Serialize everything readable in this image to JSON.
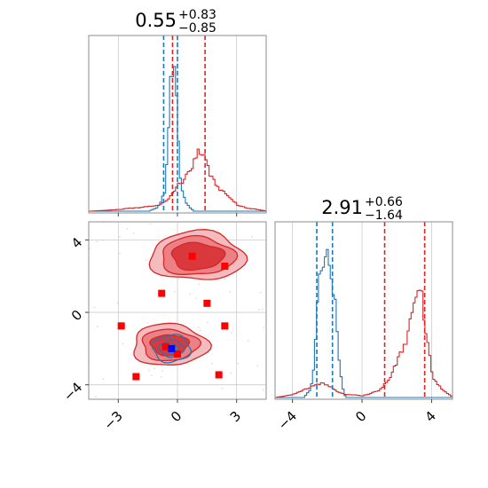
{
  "chart_data": [
    {
      "panel": "top-left",
      "type": "histogram",
      "title": {
        "value": "0.55",
        "plus": "+0.83",
        "minus": "−0.85"
      },
      "xlim": [
        -4.5,
        4.5
      ],
      "grid": true,
      "series": [
        {
          "color": "#1f77b4",
          "x": [
            -4.5,
            -1.5,
            -1.1,
            -0.9,
            -0.7,
            -0.6,
            -0.5,
            -0.4,
            -0.3,
            -0.2,
            -0.1,
            0.0,
            0.1,
            0.2,
            0.4,
            0.6,
            0.8,
            4.5
          ],
          "values": [
            0,
            0,
            0.02,
            0.05,
            0.12,
            0.3,
            0.55,
            0.85,
            0.9,
            1.0,
            0.75,
            0.4,
            0.2,
            0.12,
            0.05,
            0.02,
            0,
            0
          ]
        },
        {
          "color": "#d62728",
          "x": [
            -4.5,
            -3.0,
            -2.5,
            -2.0,
            -1.5,
            -1.0,
            -0.5,
            0.0,
            0.5,
            1.0,
            1.3,
            1.6,
            2.0,
            2.5,
            3.0,
            3.5,
            4.0,
            4.5
          ],
          "values": [
            0,
            0.01,
            0.02,
            0.02,
            0.03,
            0.04,
            0.07,
            0.16,
            0.25,
            0.35,
            0.33,
            0.24,
            0.16,
            0.09,
            0.04,
            0.02,
            0.01,
            0
          ]
        }
      ],
      "vlines": [
        {
          "x": -0.7,
          "color": "#1f77b4"
        },
        {
          "x": -0.25,
          "color": "#d62728"
        },
        {
          "x": 0.0,
          "color": "#1f77b4"
        },
        {
          "x": 1.4,
          "color": "#d62728"
        }
      ]
    },
    {
      "panel": "bottom-left",
      "type": "contour",
      "xlim": [
        -4.5,
        4.5
      ],
      "ylim": [
        -4.8,
        5.0
      ],
      "xticks": [
        "−3",
        "0",
        "3"
      ],
      "xtick_values": [
        -3,
        0,
        3
      ],
      "yticks": [
        "−4",
        "0",
        "4"
      ],
      "ytick_values": [
        -4,
        0,
        4
      ],
      "grid": true,
      "red_blobs": [
        {
          "cx": 1.0,
          "cy": 3.1,
          "rx": 2.4,
          "ry": 1.35,
          "levels": [
            1.0,
            0.78,
            0.55
          ]
        },
        {
          "cx": -0.4,
          "cy": -1.8,
          "rx": 1.9,
          "ry": 1.15,
          "levels": [
            1.0,
            0.75,
            0.5
          ]
        }
      ],
      "blue_contours": [
        {
          "cx": -0.3,
          "cy": -2.0,
          "rx": 0.95,
          "ry": 0.75
        },
        {
          "cx": -0.3,
          "cy": -2.0,
          "rx": 0.6,
          "ry": 0.45
        },
        {
          "cx": -0.3,
          "cy": -2.0,
          "rx": 0.3,
          "ry": 0.25
        }
      ],
      "red_markers": [
        [
          0.75,
          3.1
        ],
        [
          2.4,
          2.55
        ],
        [
          -0.8,
          1.05
        ],
        [
          1.5,
          0.5
        ],
        [
          -2.85,
          -0.75
        ],
        [
          2.4,
          -0.75
        ],
        [
          -0.6,
          -1.9
        ],
        [
          0.0,
          -2.3
        ],
        [
          -2.1,
          -3.55
        ],
        [
          2.1,
          -3.45
        ]
      ],
      "blue_markers": [
        [
          -0.3,
          -2.0
        ]
      ]
    },
    {
      "panel": "bottom-right",
      "type": "histogram",
      "title": {
        "value": "2.91",
        "plus": "+0.66",
        "minus": "−1.64"
      },
      "xlim": [
        -5.0,
        5.2
      ],
      "xticks": [
        "−4",
        "0",
        "4"
      ],
      "xtick_values": [
        -4,
        0,
        4
      ],
      "grid": true,
      "series": [
        {
          "color": "#1f77b4",
          "x": [
            -5.0,
            -3.4,
            -3.0,
            -2.8,
            -2.6,
            -2.4,
            -2.2,
            -2.0,
            -1.8,
            -1.6,
            -1.4,
            -1.2,
            -1.0,
            5.2
          ],
          "values": [
            0,
            0,
            0.05,
            0.2,
            0.6,
            0.85,
            0.95,
            1.0,
            0.8,
            0.55,
            0.25,
            0.07,
            0,
            0
          ]
        },
        {
          "color": "#d62728",
          "x": [
            -5.0,
            -4.0,
            -3.5,
            -3.0,
            -2.5,
            -2.0,
            -1.5,
            -1.0,
            0.0,
            1.0,
            1.6,
            2.0,
            2.5,
            3.0,
            3.3,
            3.6,
            4.0,
            4.5,
            5.2
          ],
          "values": [
            0,
            0.02,
            0.04,
            0.07,
            0.09,
            0.07,
            0.04,
            0.02,
            0.01,
            0.05,
            0.12,
            0.25,
            0.38,
            0.58,
            0.68,
            0.45,
            0.14,
            0.05,
            0
          ]
        }
      ],
      "vlines": [
        {
          "x": -2.6,
          "color": "#1f77b4"
        },
        {
          "x": -1.7,
          "color": "#1f77b4"
        },
        {
          "x": 1.3,
          "color": "#d62728"
        },
        {
          "x": 3.6,
          "color": "#d62728"
        }
      ]
    }
  ]
}
